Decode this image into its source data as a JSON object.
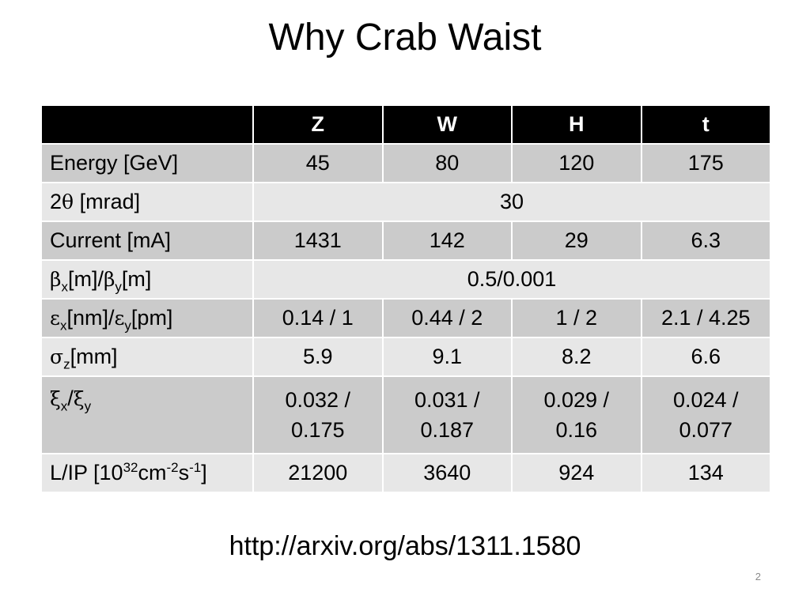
{
  "slide": {
    "title": "Why Crab Waist",
    "url": "http://arxiv.org/abs/1311.1580",
    "page_number": "2"
  },
  "table": {
    "headers": [
      "",
      "Z",
      "W",
      "H",
      "t"
    ],
    "rows": [
      {
        "label": "Energy [GeV]",
        "values": [
          "45",
          "80",
          "120",
          "175"
        ]
      },
      {
        "label_parts": {
          "prefix": "2",
          "symbol": "θ",
          "suffix": " [mrad]"
        },
        "merged_value": "30"
      },
      {
        "label": "Current [mA]",
        "values": [
          "1431",
          "142",
          "29",
          "6.3"
        ]
      },
      {
        "label_parts": {
          "sym1": "β",
          "sub1": "x",
          "mid": "[m]/",
          "sym2": "β",
          "sub2": "y",
          "end": "[m]"
        },
        "merged_value": "0.5/0.001"
      },
      {
        "label_parts": {
          "sym1": "ε",
          "sub1": "x",
          "mid": "[nm]/",
          "sym2": "ε",
          "sub2": "y",
          "end": "[pm]"
        },
        "values": [
          "0.14 / 1",
          "0.44 / 2",
          "1 / 2",
          "2.1 / 4.25"
        ]
      },
      {
        "label_parts": {
          "sym1": "σ",
          "sub1": "z",
          "end": "[mm]"
        },
        "values": [
          "5.9",
          "9.1",
          "8.2",
          "6.6"
        ]
      },
      {
        "label_parts": {
          "sym1": "ξ",
          "sub1": "x",
          "mid": "/",
          "sym2": "ξ",
          "sub2": "y"
        },
        "values": [
          [
            "0.032 /",
            "0.175"
          ],
          [
            "0.031 /",
            "0.187"
          ],
          [
            "0.029 /",
            "0.16"
          ],
          [
            "0.024 /",
            "0.077"
          ]
        ]
      },
      {
        "label_parts": {
          "prefix": "L/IP [10",
          "sup1": "32",
          "mid": "cm",
          "sup2": "-2",
          "mid2": "s",
          "sup3": "-1",
          "end": "]"
        },
        "values": [
          "21200",
          "3640",
          "924",
          "134"
        ]
      }
    ]
  },
  "colors": {
    "header_bg": "#000000",
    "header_text": "#ffffff",
    "row_dark": "#cbcbcb",
    "row_light": "#e7e7e7",
    "page_number": "#8a8a8a"
  }
}
